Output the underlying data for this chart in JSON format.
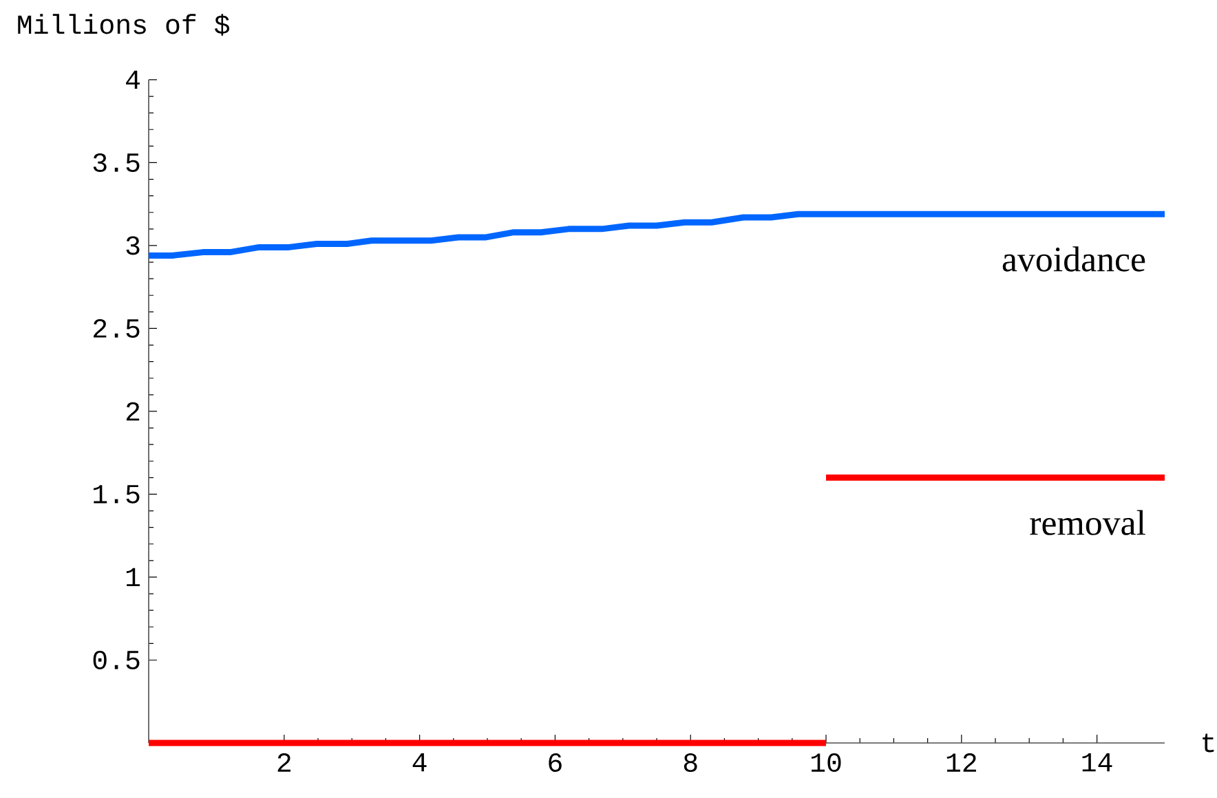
{
  "chart_data": {
    "type": "line",
    "xlabel": "t",
    "ylabel": "Millions of $",
    "xlim": [
      0,
      15
    ],
    "ylim": [
      0,
      4
    ],
    "xticks": [
      2,
      4,
      6,
      8,
      10,
      12,
      14
    ],
    "yticks": [
      0.5,
      1,
      1.5,
      2,
      2.5,
      3,
      3.5,
      4
    ],
    "series": [
      {
        "color": "#0066ff",
        "x": [
          0,
          0.35,
          0.8,
          1.2,
          1.63,
          2.07,
          2.48,
          2.93,
          3.29,
          4.17,
          4.57,
          4.98,
          5.39,
          5.79,
          6.2,
          6.69,
          7.09,
          7.5,
          7.91,
          8.31,
          8.78,
          9.19,
          9.59,
          15
        ],
        "values": [
          2.94,
          2.94,
          2.96,
          2.96,
          2.99,
          2.99,
          3.01,
          3.01,
          3.03,
          3.03,
          3.05,
          3.05,
          3.08,
          3.08,
          3.1,
          3.1,
          3.12,
          3.12,
          3.14,
          3.14,
          3.17,
          3.17,
          3.19,
          3.19
        ]
      },
      {
        "color": "#ff0000",
        "x": [
          0,
          10
        ],
        "values": [
          0,
          0
        ]
      },
      {
        "color": "#ff0000",
        "x": [
          10,
          15
        ],
        "values": [
          1.6,
          1.6
        ]
      }
    ],
    "annotations": [
      "avoidance",
      "removal"
    ],
    "grid": false,
    "marker": "none",
    "line_style": "solid"
  }
}
